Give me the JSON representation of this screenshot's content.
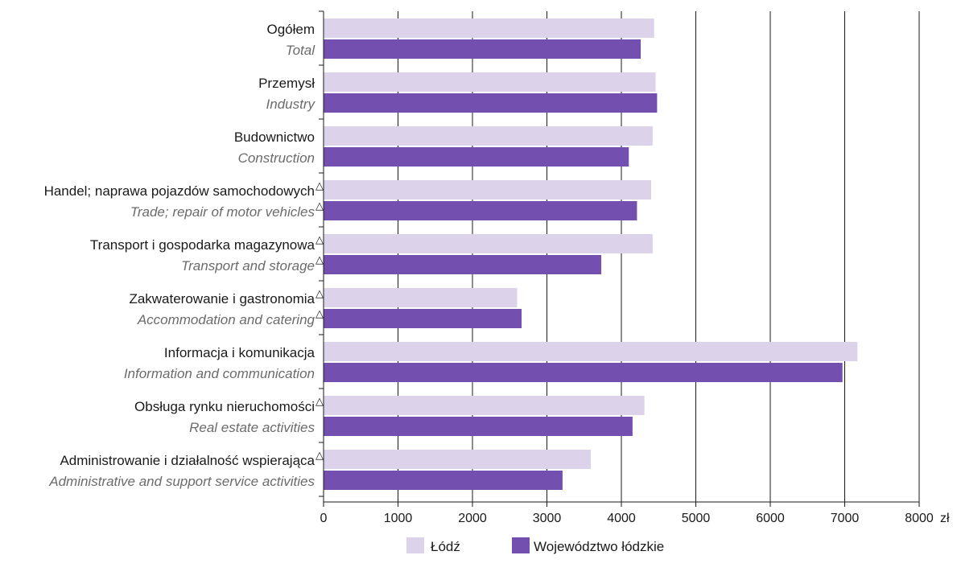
{
  "chart_data": {
    "type": "bar",
    "orientation": "horizontal",
    "categories": [
      {
        "pl": "Ogółem",
        "en": "Total",
        "mark_pl": false,
        "mark_en": false
      },
      {
        "pl": "Przemysł",
        "en": "Industry",
        "mark_pl": false,
        "mark_en": false
      },
      {
        "pl": "Budownictwo",
        "en": "Construction",
        "mark_pl": false,
        "mark_en": false
      },
      {
        "pl": "Handel; naprawa pojazdów samochodowych",
        "en": "Trade; repair of motor vehicles",
        "mark_pl": true,
        "mark_en": true
      },
      {
        "pl": "Transport i gospodarka magazynowa",
        "en": "Transport and storage",
        "mark_pl": true,
        "mark_en": true
      },
      {
        "pl": "Zakwaterowanie i gastronomia",
        "en": "Accommodation and catering",
        "mark_pl": true,
        "mark_en": true
      },
      {
        "pl": "Informacja i komunikacja",
        "en": "Information and communication",
        "mark_pl": false,
        "mark_en": false
      },
      {
        "pl": "Obsługa rynku nieruchomości",
        "en": "Real estate activities",
        "mark_pl": true,
        "mark_en": false
      },
      {
        "pl": "Administrowanie i działalność wspierająca",
        "en": "Administrative and support service activities",
        "mark_pl": true,
        "mark_en": false
      }
    ],
    "mark_symbol": "△",
    "series": [
      {
        "name": "Łódź",
        "color": "#dcd3ea",
        "values": [
          4440,
          4460,
          4420,
          4400,
          4420,
          2600,
          7170,
          4310,
          3590
        ]
      },
      {
        "name": "Województwo łódzkie",
        "color": "#7350af",
        "values": [
          4260,
          4480,
          4100,
          4210,
          3730,
          2660,
          6970,
          4150,
          3210
        ]
      }
    ],
    "xlim": [
      0,
      8000
    ],
    "ticks": [
      "0",
      "1000",
      "2000",
      "3000",
      "4000",
      "5000",
      "6000",
      "7000",
      "8000"
    ],
    "unit": "zł",
    "grid": true,
    "legend_position": "bottom"
  }
}
